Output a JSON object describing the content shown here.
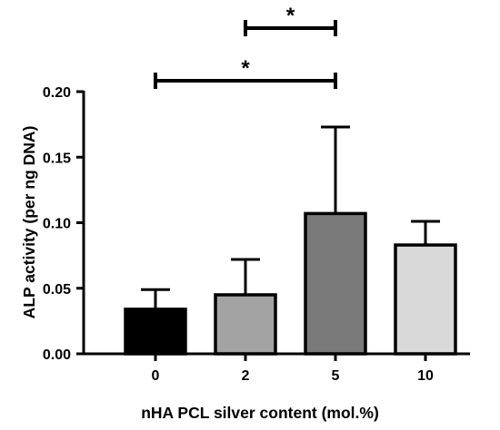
{
  "chart_data": {
    "type": "bar",
    "categories": [
      "0",
      "2",
      "5",
      "10"
    ],
    "values": [
      0.034,
      0.045,
      0.107,
      0.083
    ],
    "errors": [
      0.015,
      0.027,
      0.066,
      0.018
    ],
    "colors": [
      "#000000",
      "#a3a3a3",
      "#7a7a7a",
      "#d9d9d9"
    ],
    "xlabel": "nHA PCL silver content (mol.%)",
    "ylabel": "ALP activity (per ng DNA)",
    "ylim": [
      0,
      0.2
    ],
    "yticks": [
      "0.00",
      "0.05",
      "0.10",
      "0.15",
      "0.20"
    ],
    "significance": [
      {
        "from": "0",
        "to": "5",
        "label": "*"
      },
      {
        "from": "2",
        "to": "5",
        "label": "*"
      }
    ],
    "grid": false,
    "legend": "none"
  }
}
